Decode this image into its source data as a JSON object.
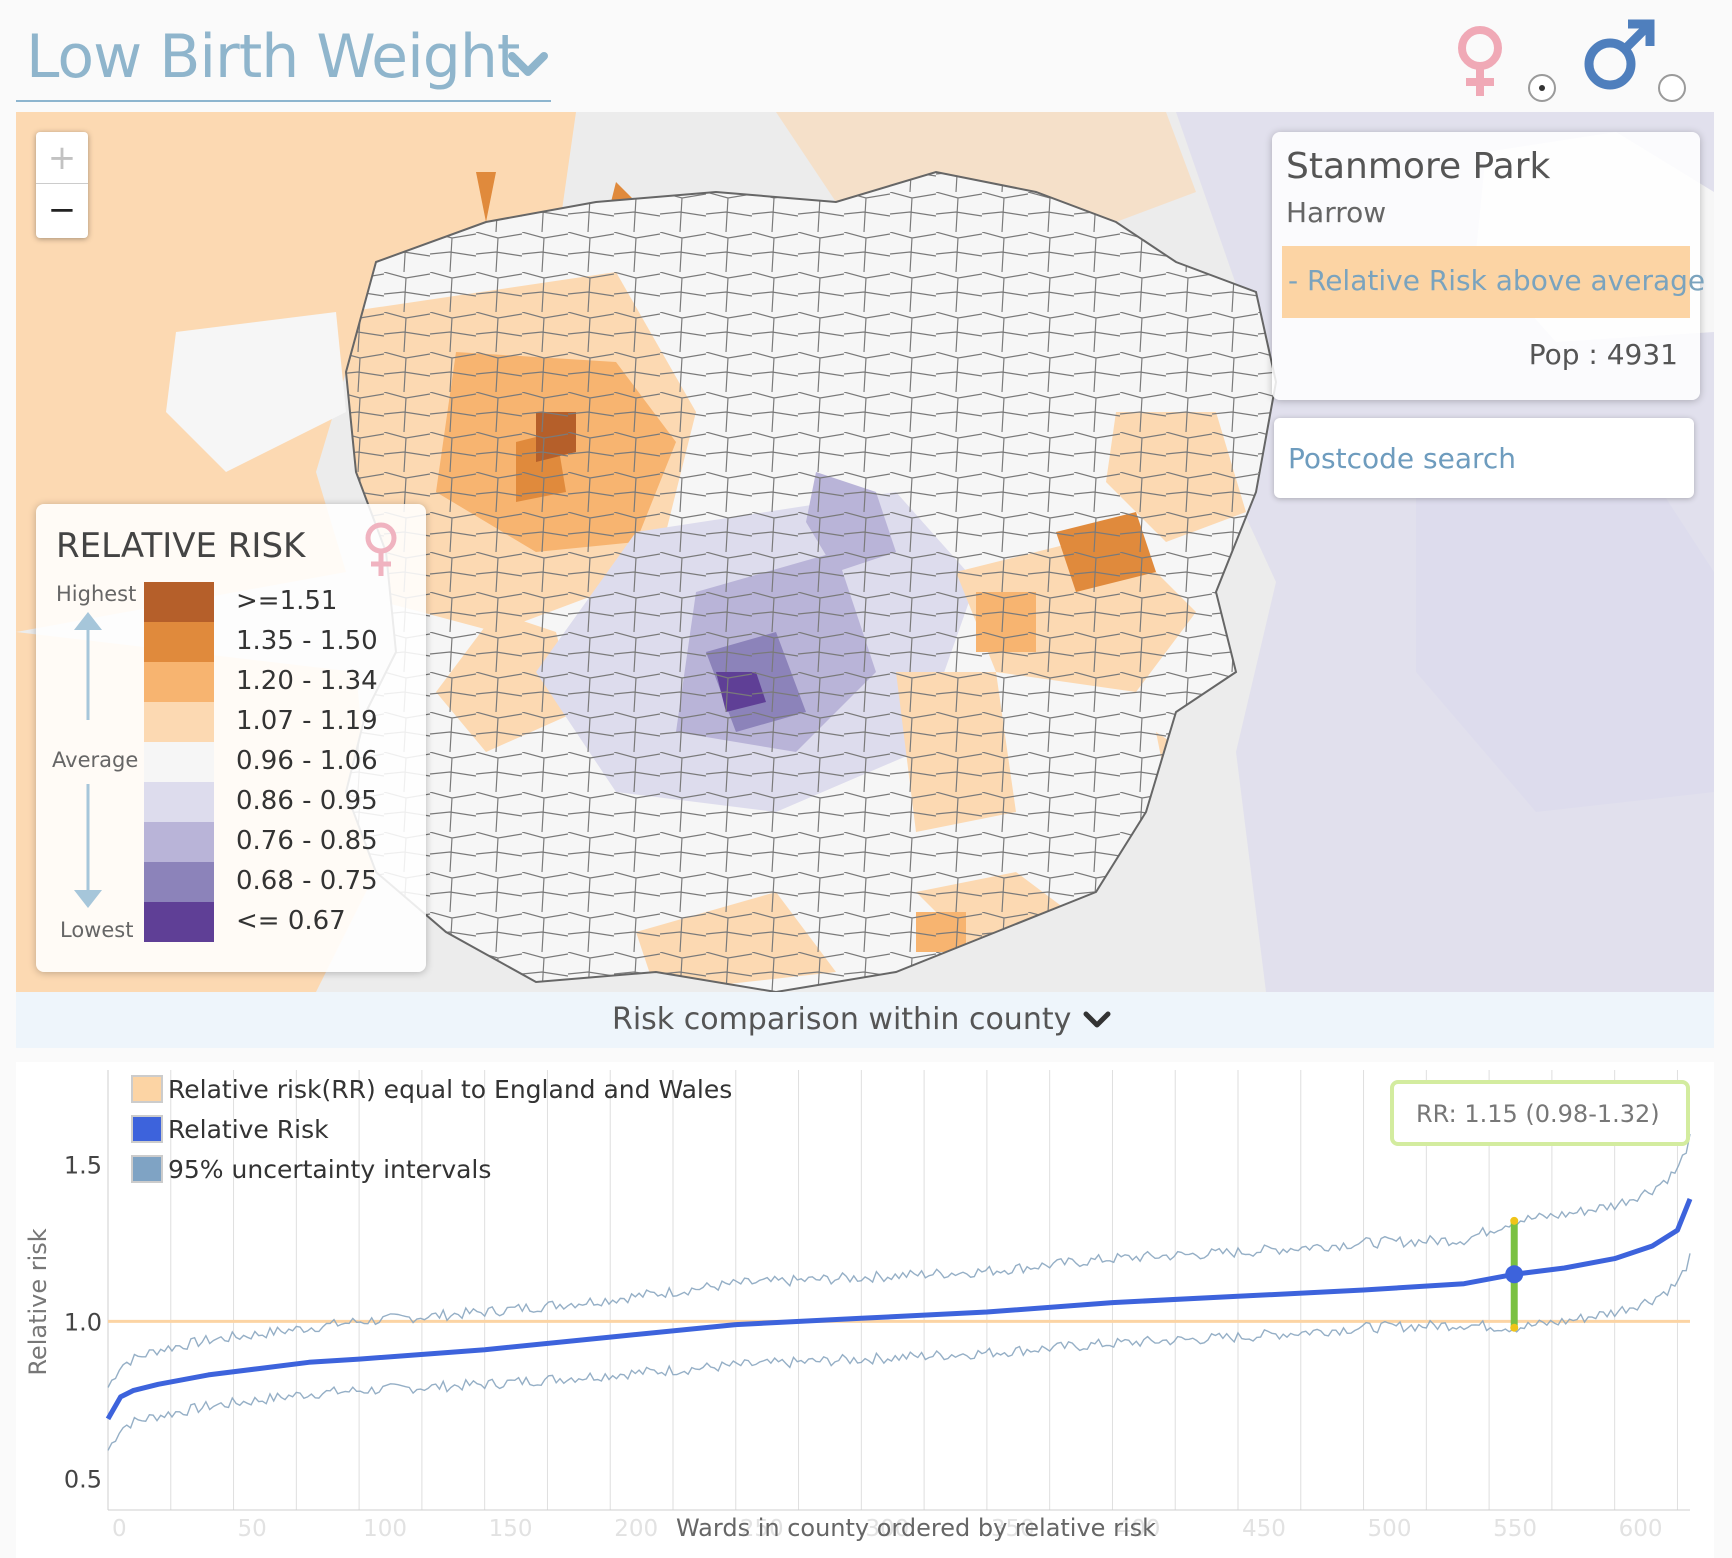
{
  "header": {
    "title": "Low Birth Weight",
    "female_symbol": "♀",
    "male_symbol": "♂",
    "selected_gender": "female"
  },
  "map": {
    "zoom_in": "+",
    "zoom_out": "−"
  },
  "info": {
    "ward": "Stanmore Park",
    "borough": "Harrow",
    "risk_text": "- Relative Risk above average",
    "population": "Pop : 4931"
  },
  "search": {
    "placeholder": "Postcode search"
  },
  "legend": {
    "title": "RELATIVE RISK",
    "symbol": "♀",
    "highest": "Highest",
    "average": "Average",
    "lowest": "Lowest",
    "items": [
      {
        "range": ">=1.51",
        "color": "#b55f2a"
      },
      {
        "range": "1.35 - 1.50",
        "color": "#e08a3c"
      },
      {
        "range": "1.20 - 1.34",
        "color": "#f7b470"
      },
      {
        "range": "1.07 - 1.19",
        "color": "#fcd9b2"
      },
      {
        "range": "0.96 - 1.06",
        "color": "#f6f6f6"
      },
      {
        "range": "0.86 - 0.95",
        "color": "#dddced"
      },
      {
        "range": "0.76 - 0.85",
        "color": "#b9b4d8"
      },
      {
        "range": "0.68 - 0.75",
        "color": "#8c83ba"
      },
      {
        "range": "<= 0.67",
        "color": "#5f3f96"
      }
    ]
  },
  "comparison": {
    "label": "Risk comparison within county"
  },
  "chart_data": {
    "type": "line",
    "xlabel": "Wards in county ordered by relative risk",
    "ylabel": "Relative risk",
    "x_ticks": [
      0,
      50,
      100,
      150,
      200,
      250,
      300,
      350,
      400,
      450,
      500,
      550,
      600
    ],
    "y_ticks": [
      0.5,
      1.0,
      1.5
    ],
    "y_tick_labels": [
      "0.5",
      "1.0",
      "1.5"
    ],
    "xlim": [
      0,
      630
    ],
    "ylim": [
      0.4,
      1.8
    ],
    "legend": [
      {
        "label": "Relative risk(RR) equal to England and Wales",
        "color": "#fcd4a4"
      },
      {
        "label": "Relative Risk",
        "color": "#3d63dc"
      },
      {
        "label": "95% uncertainty intervals",
        "color": "#7fa3c4"
      }
    ],
    "reference_line": 1.0,
    "series": [
      {
        "name": "Relative Risk",
        "x": [
          0,
          5,
          10,
          20,
          40,
          60,
          80,
          100,
          150,
          200,
          250,
          300,
          350,
          400,
          450,
          500,
          540,
          560,
          580,
          600,
          615,
          625,
          630
        ],
        "values": [
          0.69,
          0.76,
          0.78,
          0.8,
          0.83,
          0.85,
          0.87,
          0.88,
          0.91,
          0.95,
          0.99,
          1.01,
          1.03,
          1.06,
          1.08,
          1.1,
          1.12,
          1.15,
          1.17,
          1.2,
          1.24,
          1.29,
          1.39
        ]
      },
      {
        "name": "95% uncertainty intervals",
        "x": [
          0,
          5,
          10,
          20,
          40,
          60,
          80,
          100,
          150,
          200,
          250,
          300,
          350,
          400,
          450,
          500,
          540,
          560,
          580,
          600,
          615,
          625,
          630
        ],
        "upper": [
          0.79,
          0.86,
          0.88,
          0.91,
          0.94,
          0.96,
          0.98,
          1.0,
          1.03,
          1.07,
          1.12,
          1.14,
          1.16,
          1.2,
          1.22,
          1.25,
          1.26,
          1.32,
          1.34,
          1.37,
          1.42,
          1.48,
          1.58
        ],
        "lower": [
          0.59,
          0.66,
          0.68,
          0.7,
          0.73,
          0.75,
          0.77,
          0.78,
          0.8,
          0.83,
          0.86,
          0.88,
          0.9,
          0.93,
          0.95,
          0.98,
          0.99,
          0.98,
          1.0,
          1.03,
          1.07,
          1.12,
          1.2
        ]
      }
    ],
    "highlight": {
      "x": 560,
      "value": 1.15,
      "lower": 0.98,
      "upper": 1.32,
      "label": "RR: 1.15 (0.98-1.32)"
    }
  }
}
